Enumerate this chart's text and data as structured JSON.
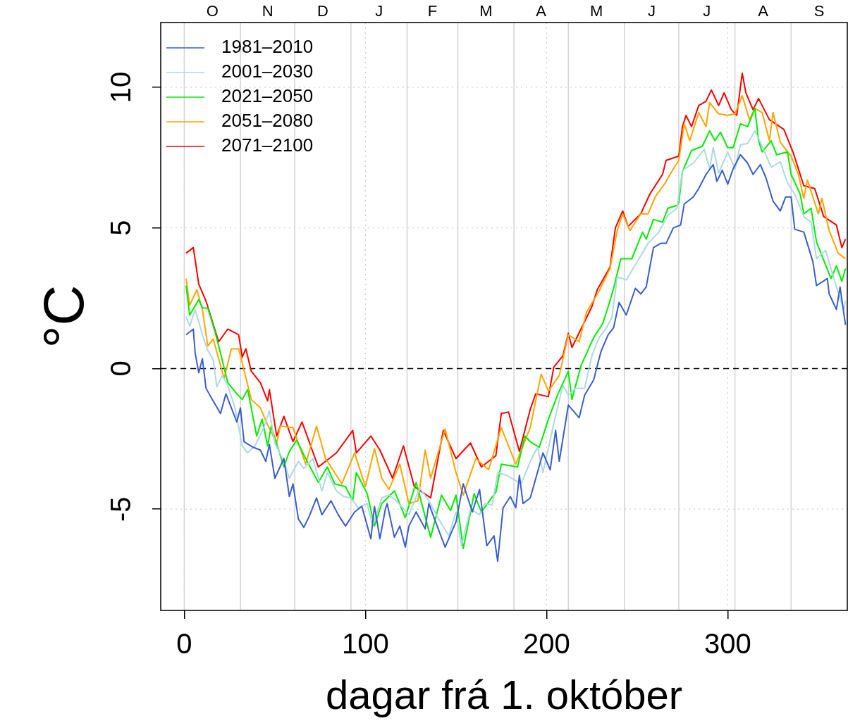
{
  "chart_data": {
    "type": "line",
    "xlabel": "dagar frá 1. október",
    "ylabel": "°C",
    "xlim": [
      -13,
      366
    ],
    "ylim": [
      -8.6,
      12.3
    ],
    "xticks": [
      0,
      100,
      200,
      300
    ],
    "yticks": [
      -5,
      0,
      5,
      10
    ],
    "annotations": [
      "O",
      "N",
      "D",
      "J",
      "F",
      "M",
      "A",
      "M",
      "J",
      "J",
      "A",
      "S"
    ],
    "grid": true,
    "legend": "top left",
    "ref_lines": [
      {
        "axis": "x",
        "value": 0,
        "color": "#d3d3d3"
      },
      {
        "axis": "x",
        "value": 31,
        "color": "#d3d3d3"
      },
      {
        "axis": "x",
        "value": 61,
        "color": "#d3d3d3"
      },
      {
        "axis": "x",
        "value": 92,
        "color": "#d3d3d3"
      },
      {
        "axis": "x",
        "value": 123,
        "color": "#d3d3d3"
      },
      {
        "axis": "x",
        "value": 151,
        "color": "#d3d3d3"
      },
      {
        "axis": "x",
        "value": 182,
        "color": "#d3d3d3"
      },
      {
        "axis": "x",
        "value": 212,
        "color": "#d3d3d3"
      },
      {
        "axis": "x",
        "value": 243,
        "color": "#d3d3d3"
      },
      {
        "axis": "x",
        "value": 273,
        "color": "#d3d3d3"
      },
      {
        "axis": "x",
        "value": 304,
        "color": "#d3d3d3"
      },
      {
        "axis": "x",
        "value": 335,
        "color": "#d3d3d3"
      },
      {
        "axis": "y",
        "value": 0,
        "color": "#000000",
        "line_style": "dashed"
      }
    ],
    "series": [
      {
        "name": "1981–2010",
        "color": "#3a5fcd",
        "x": [
          1,
          5,
          6,
          8,
          10,
          12,
          15,
          20,
          23,
          29,
          31,
          33,
          38,
          42,
          45,
          47,
          50,
          55,
          58,
          60,
          63,
          66,
          69,
          73,
          76,
          81,
          85,
          89,
          94,
          98,
          103,
          105,
          108,
          111,
          112,
          116,
          119,
          122,
          124,
          128,
          133,
          135,
          139,
          144,
          150,
          154,
          159,
          163,
          167,
          171,
          173,
          176,
          180,
          183,
          185,
          187,
          191,
          198,
          202,
          205,
          207,
          212,
          216,
          218,
          221,
          226,
          230,
          234,
          237,
          240,
          244,
          249,
          252,
          255,
          259,
          263,
          266,
          270,
          274,
          276,
          281,
          284,
          288,
          292,
          294,
          297,
          300,
          303,
          307,
          311,
          314,
          318,
          321,
          325,
          329,
          332,
          335,
          337,
          342,
          347,
          349,
          355,
          356,
          360,
          362,
          365
        ],
        "values": [
          1.2,
          1.4,
          0.55,
          -0.15,
          0.35,
          -0.7,
          -1.05,
          -1.6,
          -0.9,
          -1.9,
          -1.4,
          -2.6,
          -2.8,
          -2.9,
          -3.3,
          -2.7,
          -3.9,
          -3.2,
          -4.55,
          -4.1,
          -5.35,
          -5.65,
          -5.25,
          -4.6,
          -5.2,
          -4.7,
          -5.2,
          -5.6,
          -5.1,
          -4.9,
          -6.05,
          -4.9,
          -6.05,
          -5.0,
          -4.8,
          -6.0,
          -5.6,
          -6.35,
          -5.6,
          -5.1,
          -5.7,
          -4.8,
          -5.5,
          -6.35,
          -5.45,
          -4.1,
          -5.1,
          -4.3,
          -6.3,
          -5.95,
          -6.85,
          -4.95,
          -4.55,
          -4.95,
          -3.8,
          -4.8,
          -4.6,
          -3.0,
          -3.6,
          -2.2,
          -3.3,
          -1.3,
          -1.6,
          -1.75,
          -0.95,
          -0.4,
          0.6,
          1.2,
          1.45,
          2.35,
          1.9,
          2.85,
          2.65,
          2.9,
          4.3,
          4.45,
          4.45,
          5.0,
          5.1,
          5.85,
          6.1,
          6.4,
          6.9,
          7.25,
          6.65,
          7.05,
          6.55,
          7.1,
          7.6,
          7.3,
          6.9,
          7.25,
          6.8,
          5.95,
          5.6,
          6.1,
          6.1,
          4.95,
          4.85,
          3.8,
          2.95,
          3.2,
          2.65,
          2.1,
          2.9,
          1.55
        ]
      },
      {
        "name": "2001–2030",
        "color": "#add8e6",
        "x": [
          1,
          3,
          6,
          11,
          13,
          16,
          18,
          21,
          24,
          28,
          32,
          35,
          39,
          44,
          47,
          50,
          55,
          58,
          63,
          66,
          71,
          76,
          79,
          84,
          88,
          92,
          96,
          101,
          104,
          109,
          113,
          117,
          124,
          130,
          135,
          140,
          146,
          150,
          153,
          158,
          163,
          166,
          170,
          173,
          178,
          186,
          191,
          195,
          198,
          204,
          209,
          212,
          216,
          221,
          225,
          229,
          233,
          236,
          239,
          244,
          251,
          256,
          262,
          267,
          272,
          275,
          281,
          287,
          290,
          292,
          295,
          300,
          304,
          307,
          311,
          315,
          319,
          324,
          329,
          333,
          337,
          342,
          346,
          349,
          354,
          360,
          364,
          365
        ],
        "values": [
          1.85,
          1.5,
          2.1,
          1.0,
          0.65,
          0.3,
          -0.65,
          -0.25,
          -0.6,
          -1.4,
          -2.75,
          -3.0,
          -2.75,
          -2.1,
          -1.5,
          -2.65,
          -3.3,
          -3.9,
          -3.3,
          -3.55,
          -3.2,
          -4.35,
          -3.7,
          -4.35,
          -4.55,
          -4.6,
          -4.95,
          -4.8,
          -5.6,
          -4.6,
          -4.5,
          -4.7,
          -5.2,
          -4.25,
          -4.7,
          -5.3,
          -5.95,
          -5.1,
          -6.3,
          -5.0,
          -5.2,
          -4.8,
          -4.85,
          -3.7,
          -3.8,
          -4.1,
          -3.3,
          -2.8,
          -3.7,
          -1.95,
          -0.6,
          -0.95,
          -0.7,
          -0.7,
          0.45,
          1.1,
          1.45,
          1.8,
          3.25,
          3.15,
          3.9,
          4.45,
          4.85,
          5.45,
          5.7,
          7.05,
          7.3,
          7.8,
          7.1,
          7.85,
          6.95,
          7.7,
          7.1,
          7.95,
          8.0,
          8.45,
          7.9,
          7.15,
          7.35,
          6.6,
          6.2,
          5.4,
          5.2,
          3.9,
          4.2,
          2.9,
          2.1,
          2.4
        ]
      },
      {
        "name": "2021–2050",
        "color": "#00ee00",
        "x": [
          1,
          3,
          8,
          10,
          13,
          17,
          20,
          24,
          29,
          32,
          35,
          40,
          43,
          46,
          48,
          55,
          58,
          62,
          67,
          74,
          79,
          83,
          89,
          93,
          95,
          101,
          105,
          109,
          116,
          122,
          128,
          136,
          142,
          147,
          150,
          154,
          160,
          164,
          172,
          175,
          184,
          188,
          191,
          196,
          201,
          206,
          212,
          214,
          219,
          226,
          231,
          234,
          237,
          241,
          247,
          253,
          255,
          259,
          264,
          267,
          272,
          273,
          275,
          280,
          286,
          290,
          293,
          296,
          300,
          303,
          307,
          311,
          315,
          317,
          319,
          324,
          327,
          333,
          335,
          340,
          342,
          346,
          349,
          357,
          360,
          363,
          365
        ],
        "values": [
          2.95,
          1.9,
          2.45,
          2.15,
          2.15,
          1.3,
          0.55,
          -0.5,
          -0.9,
          -1.1,
          -0.75,
          -2.4,
          -1.8,
          -2.75,
          -2.05,
          -3.5,
          -2.95,
          -2.55,
          -3.2,
          -4.05,
          -3.5,
          -4.1,
          -4.2,
          -4.7,
          -3.7,
          -4.45,
          -5.6,
          -4.8,
          -4.35,
          -5.3,
          -4.05,
          -6.0,
          -4.5,
          -5.05,
          -4.5,
          -6.4,
          -4.45,
          -5.1,
          -4.4,
          -3.4,
          -3.5,
          -2.4,
          -2.6,
          -2.8,
          -1.8,
          -0.95,
          -0.1,
          -1.1,
          0.1,
          1.1,
          1.6,
          2.2,
          2.85,
          3.9,
          3.9,
          4.85,
          4.6,
          5.3,
          5.2,
          5.7,
          5.8,
          5.9,
          7.0,
          7.75,
          7.9,
          8.45,
          8.1,
          8.4,
          7.85,
          7.85,
          8.7,
          8.6,
          9.25,
          8.1,
          7.7,
          8.1,
          7.6,
          7.7,
          6.9,
          6.2,
          5.5,
          5.7,
          4.5,
          3.2,
          3.65,
          3.1,
          3.55
        ]
      },
      {
        "name": "2051–2080",
        "color": "#ffa500",
        "x": [
          1,
          3,
          7,
          10,
          13,
          16,
          22,
          26,
          30,
          32,
          37,
          42,
          46,
          51,
          53,
          60,
          67,
          73,
          78,
          87,
          94,
          100,
          105,
          109,
          113,
          119,
          124,
          129,
          133,
          136,
          144,
          150,
          154,
          161,
          168,
          175,
          183,
          191,
          197,
          201,
          207,
          212,
          218,
          222,
          229,
          235,
          239,
          242,
          246,
          252,
          256,
          260,
          265,
          270,
          273,
          276,
          279,
          284,
          288,
          290,
          295,
          300,
          304,
          308,
          312,
          315,
          319,
          323,
          325,
          329,
          335,
          339,
          342,
          344,
          350,
          352,
          356,
          361,
          365
        ],
        "values": [
          3.2,
          2.25,
          2.8,
          2.1,
          0.8,
          1.05,
          -0.35,
          0.7,
          0.7,
          0.2,
          -1.1,
          -1.4,
          -2.0,
          -2.65,
          -2.05,
          -2.1,
          -3.4,
          -2.05,
          -3.2,
          -4.1,
          -3.0,
          -4.2,
          -2.85,
          -3.9,
          -4.3,
          -3.4,
          -4.8,
          -4.7,
          -2.9,
          -3.9,
          -2.15,
          -3.7,
          -4.5,
          -3.2,
          -3.6,
          -2.1,
          -3.4,
          -2.1,
          -0.2,
          -0.8,
          -0.25,
          1.2,
          0.95,
          2.0,
          2.75,
          3.55,
          4.9,
          5.5,
          4.9,
          5.5,
          5.5,
          6.1,
          6.55,
          7.1,
          7.4,
          8.7,
          8.1,
          9.1,
          8.6,
          9.45,
          9.05,
          9.0,
          9.05,
          9.7,
          8.85,
          9.25,
          9.1,
          8.1,
          9.1,
          8.05,
          7.55,
          6.9,
          6.05,
          6.7,
          5.5,
          6.05,
          4.9,
          4.1,
          3.9
        ]
      },
      {
        "name": "2071–2100",
        "color": "#ff0000",
        "x": [
          1,
          5,
          8,
          12,
          19,
          24,
          30,
          32,
          34,
          37,
          42,
          46,
          47,
          51,
          55,
          60,
          65,
          74,
          84,
          93,
          95,
          103,
          108,
          115,
          121,
          127,
          136,
          143,
          150,
          158,
          164,
          172,
          175,
          179,
          185,
          191,
          194,
          201,
          204,
          209,
          212,
          214,
          222,
          225,
          228,
          235,
          238,
          242,
          245,
          252,
          257,
          264,
          266,
          273,
          275,
          277,
          280,
          284,
          288,
          291,
          295,
          298,
          302,
          305,
          308,
          310,
          314,
          317,
          323,
          331,
          336,
          342,
          348,
          353,
          360,
          363,
          365
        ],
        "values": [
          4.1,
          4.3,
          3.0,
          2.4,
          0.95,
          1.4,
          1.2,
          0.4,
          0.7,
          -0.1,
          -0.5,
          -1.15,
          -0.75,
          -2.4,
          -1.7,
          -2.6,
          -1.9,
          -3.5,
          -3.0,
          -2.2,
          -3.0,
          -2.4,
          -2.9,
          -3.9,
          -2.75,
          -4.2,
          -4.6,
          -2.2,
          -3.2,
          -2.65,
          -3.5,
          -3.1,
          -1.6,
          -1.55,
          -2.95,
          -1.45,
          -0.9,
          -1.0,
          0.05,
          0.45,
          1.25,
          0.75,
          1.8,
          2.2,
          2.8,
          3.6,
          5.0,
          5.6,
          5.05,
          5.5,
          6.2,
          6.9,
          7.4,
          7.55,
          8.6,
          9.0,
          8.6,
          9.35,
          9.5,
          9.9,
          9.35,
          9.8,
          9.2,
          9.0,
          10.5,
          9.8,
          9.2,
          9.6,
          8.85,
          8.5,
          7.7,
          6.5,
          6.4,
          5.4,
          5.1,
          4.3,
          4.6
        ]
      }
    ]
  }
}
